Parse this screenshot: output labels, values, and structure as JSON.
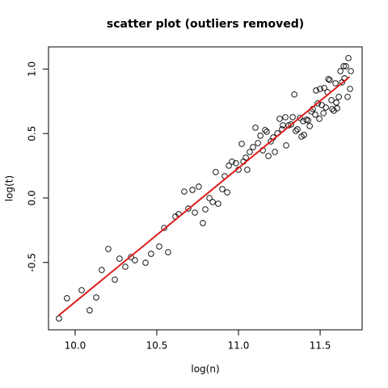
{
  "chart_data": {
    "type": "scatter",
    "title": "scatter plot (outliers removed)",
    "x_label": "log(n)",
    "y_label": "log(t)",
    "xlim": [
      9.837,
      11.757
    ],
    "ylim": [
      -1.022,
      1.172
    ],
    "xticks": [
      {
        "value": 10,
        "label": "10.0"
      },
      {
        "value": 10.5,
        "label": "10.5"
      },
      {
        "value": 11,
        "label": "11.0"
      },
      {
        "value": 11.5,
        "label": "11.5"
      }
    ],
    "yticks": [
      -0.5,
      {
        "value": 0,
        "label": "0.0"
      },
      0.5,
      {
        "value": 1,
        "label": "1.0"
      }
    ],
    "series": [
      {
        "color": "#000000",
        "x": [
          9.901,
          9.95,
          10.04,
          10.089,
          10.129,
          10.163,
          10.203,
          10.243,
          10.272,
          10.307,
          10.342,
          10.366,
          10.431,
          10.465,
          10.515,
          10.545,
          10.569,
          10.614,
          10.634,
          10.668,
          10.693,
          10.718,
          10.757,
          10.733,
          10.782,
          10.797,
          10.822,
          10.842,
          10.861,
          10.876,
          10.901,
          10.916,
          10.931,
          10.941,
          10.96,
          10.985,
          11.0,
          11.02,
          11.03,
          11.045,
          11.054,
          11.069,
          11.089,
          11.104,
          11.119,
          11.134,
          11.149,
          11.163,
          11.173,
          11.183,
          11.198,
          11.213,
          11.223,
          11.238,
          11.252,
          11.267,
          11.272,
          11.287,
          11.292,
          11.307,
          11.322,
          11.332,
          11.342,
          11.351,
          11.361,
          11.376,
          11.386,
          11.396,
          11.401,
          11.416,
          11.426,
          11.436,
          11.446,
          11.455,
          11.47,
          11.475,
          11.485,
          11.495,
          11.5,
          11.51,
          11.52,
          11.525,
          11.535,
          11.545,
          11.55,
          11.559,
          11.569,
          11.574,
          11.584,
          11.594,
          11.599,
          11.604,
          11.614,
          11.624,
          11.634,
          11.644,
          11.649,
          11.658,
          11.668,
          11.673,
          11.683,
          11.688
        ],
        "values": [
          -0.934,
          -0.777,
          -0.715,
          -0.871,
          -0.771,
          -0.558,
          -0.395,
          -0.633,
          -0.47,
          -0.533,
          -0.458,
          -0.483,
          -0.502,
          -0.433,
          -0.376,
          -0.232,
          -0.42,
          -0.144,
          -0.125,
          0.05,
          -0.082,
          0.063,
          0.088,
          -0.113,
          -0.194,
          -0.088,
          0.0,
          -0.031,
          0.201,
          -0.044,
          0.069,
          0.169,
          0.044,
          0.251,
          0.282,
          0.27,
          0.219,
          0.42,
          0.282,
          0.313,
          0.219,
          0.357,
          0.395,
          0.545,
          0.426,
          0.483,
          0.37,
          0.527,
          0.514,
          0.326,
          0.439,
          0.47,
          0.357,
          0.502,
          0.614,
          0.533,
          0.564,
          0.627,
          0.408,
          0.564,
          0.571,
          0.627,
          0.803,
          0.52,
          0.533,
          0.621,
          0.476,
          0.596,
          0.489,
          0.608,
          0.602,
          0.558,
          0.671,
          0.69,
          0.646,
          0.834,
          0.734,
          0.614,
          0.846,
          0.721,
          0.658,
          0.853,
          0.702,
          0.821,
          0.922,
          0.915,
          0.759,
          0.69,
          0.677,
          0.89,
          0.74,
          0.696,
          0.784,
          0.984,
          0.897,
          1.022,
          0.928,
          1.022,
          0.784,
          1.085,
          0.846,
          0.984
        ]
      }
    ],
    "fit_line": {
      "color": "#dd1c1c",
      "x": [
        9.9,
        11.68
      ],
      "y": [
        -0.91,
        0.94
      ]
    }
  }
}
